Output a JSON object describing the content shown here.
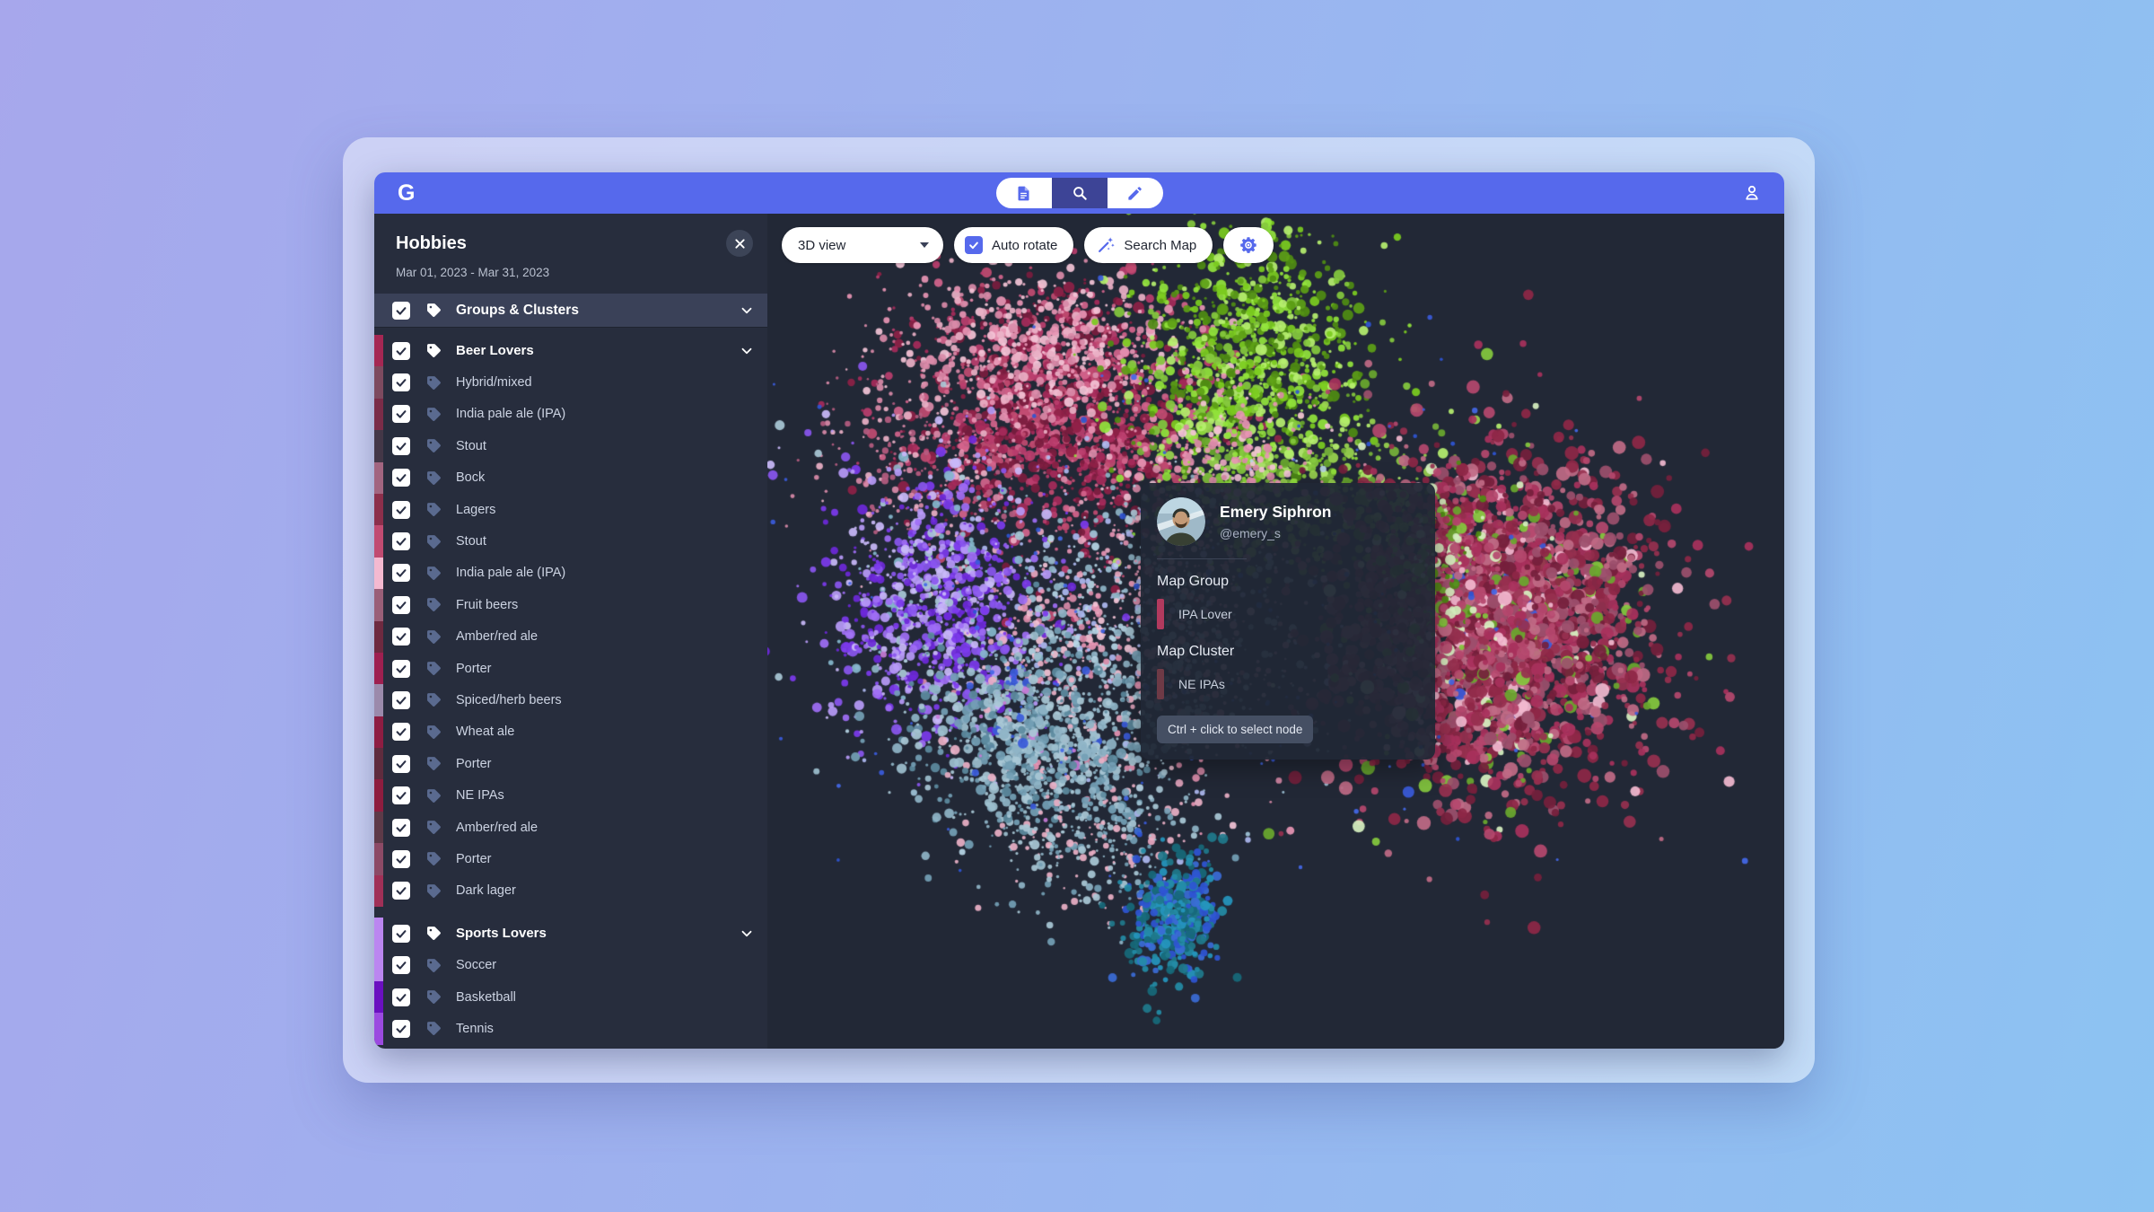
{
  "window": {
    "logo": "G"
  },
  "topbar": {
    "modes": [
      {
        "icon": "document",
        "active": false
      },
      {
        "icon": "search",
        "active": true
      },
      {
        "icon": "pencil",
        "active": false
      }
    ]
  },
  "sidebar": {
    "title": "Hobbies",
    "date_range": "Mar 01, 2023 - Mar 31, 2023",
    "root": {
      "label": "Groups & Clusters",
      "checked": true
    },
    "rows": [
      {
        "type": "group",
        "label": "Beer Lovers",
        "color": "#a52753",
        "checked": true
      },
      {
        "type": "item",
        "label": "Hybrid/mixed",
        "color": "#7d4a5f",
        "checked": true
      },
      {
        "type": "item",
        "label": "India pale ale (IPA)",
        "color": "#7a2c48",
        "checked": true
      },
      {
        "type": "item",
        "label": "Stout",
        "color": "#433747",
        "checked": true
      },
      {
        "type": "item",
        "label": "Bock",
        "color": "#a26580",
        "checked": true
      },
      {
        "type": "item",
        "label": "Lagers",
        "color": "#8c2f4b",
        "checked": true
      },
      {
        "type": "item",
        "label": "Stout",
        "color": "#c14b71",
        "checked": true
      },
      {
        "type": "item",
        "label": "India pale ale (IPA)",
        "color": "#f4b9d0",
        "checked": true
      },
      {
        "type": "item",
        "label": "Fruit beers",
        "color": "#9a5f78",
        "checked": true
      },
      {
        "type": "item",
        "label": "Amber/red ale",
        "color": "#6e2a40",
        "checked": true
      },
      {
        "type": "item",
        "label": "Porter",
        "color": "#9e2050",
        "checked": true
      },
      {
        "type": "item",
        "label": "Spiced/herb beers",
        "color": "#9b8aab",
        "checked": true
      },
      {
        "type": "item",
        "label": "Wheat ale",
        "color": "#8e1d42",
        "checked": true
      },
      {
        "type": "item",
        "label": "Porter",
        "color": "#5f2c3e",
        "checked": true
      },
      {
        "type": "item",
        "label": "NE IPAs",
        "color": "#8e1d3f",
        "checked": true
      },
      {
        "type": "item",
        "label": "Amber/red ale",
        "color": "#5d3a48",
        "checked": true
      },
      {
        "type": "item",
        "label": "Porter",
        "color": "#8c4a66",
        "checked": true
      },
      {
        "type": "item",
        "label": "Dark lager",
        "color": "#a03057",
        "checked": true
      },
      {
        "type": "gap"
      },
      {
        "type": "group",
        "label": "Sports Lovers",
        "color": "#bb86f0",
        "checked": true
      },
      {
        "type": "item",
        "label": "Soccer",
        "color": "#bb86f0",
        "checked": true
      },
      {
        "type": "item",
        "label": "Basketball",
        "color": "#6a10c0",
        "checked": true
      },
      {
        "type": "item",
        "label": "Tennis",
        "color": "#9b4ae0",
        "checked": true
      }
    ]
  },
  "map_toolbar": {
    "view_select": {
      "value": "3D view"
    },
    "auto_rotate": {
      "label": "Auto rotate",
      "checked": true
    },
    "search": {
      "label": "Search Map"
    }
  },
  "tooltip": {
    "name": "Emery Siphron",
    "handle": "@emery_s",
    "sections": [
      {
        "label": "Map Group",
        "entry": "IPA Lover",
        "color": "#b23a5e"
      },
      {
        "label": "Map Cluster",
        "entry": "NE IPAs",
        "color": "#6e3a46"
      }
    ],
    "hint": "Ctrl + click to select node"
  },
  "colors": {
    "accent": "#5669ec",
    "topbar_active": "#3d4496",
    "sidebar_bg": "#272d3d",
    "map_bg": "#222836"
  },
  "chart_data": {
    "type": "scatter",
    "title": "Hobbies node map (3D view)",
    "background": "#222836",
    "clusters": [
      {
        "name": "crimson-core",
        "cx": 0.285,
        "cy": 0.245,
        "sx": 0.075,
        "sy": 0.075,
        "n": 1500,
        "rmin": 1.5,
        "rmax": 6.5,
        "colors": [
          "#a62a5a",
          "#bb3e6e",
          "#8e2146",
          "#c14b71",
          "#7a1c3e",
          "#d4648c"
        ]
      },
      {
        "name": "pink-band",
        "cx": 0.27,
        "cy": 0.16,
        "sx": 0.075,
        "sy": 0.045,
        "n": 550,
        "rmin": 1.5,
        "rmax": 5.5,
        "colors": [
          "#eab0c6",
          "#f3c3d6",
          "#d98aa8",
          "#e895b4"
        ]
      },
      {
        "name": "pink-trail-left",
        "cx": 0.16,
        "cy": 0.3,
        "sx": 0.055,
        "sy": 0.06,
        "n": 260,
        "rmin": 1.2,
        "rmax": 4,
        "colors": [
          "#d98aa8",
          "#eab0c6",
          "#b55c80"
        ]
      },
      {
        "name": "lime",
        "cx": 0.475,
        "cy": 0.175,
        "sx": 0.055,
        "sy": 0.075,
        "n": 1000,
        "rmin": 1.5,
        "rmax": 6.5,
        "colors": [
          "#7ccc1f",
          "#93e43c",
          "#5da016",
          "#b6ef6f",
          "#4f8c12",
          "#86c93e"
        ]
      },
      {
        "name": "lime-skirt",
        "cx": 0.53,
        "cy": 0.33,
        "sx": 0.075,
        "sy": 0.05,
        "n": 450,
        "rmin": 1.5,
        "rmax": 6,
        "colors": [
          "#86c93e",
          "#9ad54e",
          "#6aa82e",
          "#b6ef6f",
          "#77b33a"
        ]
      },
      {
        "name": "green-pink-mix",
        "cx": 0.44,
        "cy": 0.3,
        "sx": 0.05,
        "sy": 0.05,
        "n": 300,
        "rmin": 1.5,
        "rmax": 5,
        "colors": [
          "#e895b4",
          "#f3c3d6",
          "#93e43c",
          "#d98aa8"
        ]
      },
      {
        "name": "center-mixed",
        "cx": 0.36,
        "cy": 0.5,
        "sx": 0.09,
        "sy": 0.09,
        "n": 1300,
        "rmin": 1.2,
        "rmax": 4.5,
        "colors": [
          "#e8a7c0",
          "#f3c3d6",
          "#9fc3d8",
          "#b7d6e6",
          "#8fb4c7",
          "#d98aa8",
          "#aeb8f0",
          "#e895b4"
        ]
      },
      {
        "name": "purple",
        "cx": 0.165,
        "cy": 0.47,
        "sx": 0.055,
        "sy": 0.08,
        "n": 1000,
        "rmin": 1.5,
        "rmax": 6,
        "colors": [
          "#7c3aed",
          "#9f6ef5",
          "#b79af7",
          "#6d28d9",
          "#c9b8f9",
          "#8a56ef"
        ],
        "sprinkle": [
          [
            "#86b7cc",
            0.06
          ],
          [
            "#a9c8d6",
            0.04
          ]
        ]
      },
      {
        "name": "steel",
        "cx": 0.265,
        "cy": 0.625,
        "sx": 0.06,
        "sy": 0.055,
        "n": 900,
        "rmin": 1.5,
        "rmax": 6,
        "colors": [
          "#8fb4c7",
          "#74a0b5",
          "#a9c8d6",
          "#5d8ba0",
          "#9dbfce"
        ],
        "sprinkle": [
          [
            "#3b5bdb",
            0.03
          ],
          [
            "#c77bd6",
            0.02
          ],
          [
            "#eab0c6",
            0.03
          ]
        ]
      },
      {
        "name": "steel-trail",
        "cx": 0.32,
        "cy": 0.74,
        "sx": 0.05,
        "sy": 0.05,
        "n": 350,
        "rmin": 1.2,
        "rmax": 4.5,
        "colors": [
          "#8fb4c7",
          "#74a0b5",
          "#a9c8d6",
          "#eab0c6"
        ]
      },
      {
        "name": "teal-drop",
        "cx": 0.4,
        "cy": 0.845,
        "sx": 0.022,
        "sy": 0.035,
        "n": 380,
        "rmin": 2.5,
        "rmax": 6,
        "colors": [
          "#1f7a8c",
          "#2596be",
          "#17697a",
          "#2f55d4",
          "#3b6bd6",
          "#248ca6"
        ]
      },
      {
        "name": "right-ball",
        "cx": 0.715,
        "cy": 0.49,
        "sx": 0.075,
        "sy": 0.1,
        "n": 2800,
        "rmin": 2.5,
        "rmax": 8,
        "pow": 1.2,
        "colors": [
          "#a8315c",
          "#8e2746",
          "#b5486e",
          "#97304f",
          "#c06a85",
          "#751f3c",
          "#9c4f6d"
        ],
        "sprinkle": [
          [
            "#6aa82e",
            0.03
          ],
          [
            "#f2b8cf",
            0.04
          ],
          [
            "#3b5bdb",
            0.012
          ],
          [
            "#86c93e",
            0.02
          ],
          [
            "#d7f0c0",
            0.015
          ]
        ]
      },
      {
        "name": "right-ball-greenpatch",
        "cx": 0.655,
        "cy": 0.42,
        "sx": 0.03,
        "sy": 0.05,
        "n": 240,
        "rmin": 2,
        "rmax": 6.5,
        "colors": [
          "#6aa82e",
          "#86c93e",
          "#4f8c12",
          "#b5486e",
          "#a8315c",
          "#d7f0c0"
        ]
      },
      {
        "name": "sparse-blue",
        "cx": 0.45,
        "cy": 0.45,
        "sx": 0.22,
        "sy": 0.18,
        "n": 140,
        "rmin": 1.5,
        "rmax": 3.5,
        "colors": [
          "#3b5bdb",
          "#2f55d4",
          "#4468e8"
        ]
      }
    ]
  }
}
